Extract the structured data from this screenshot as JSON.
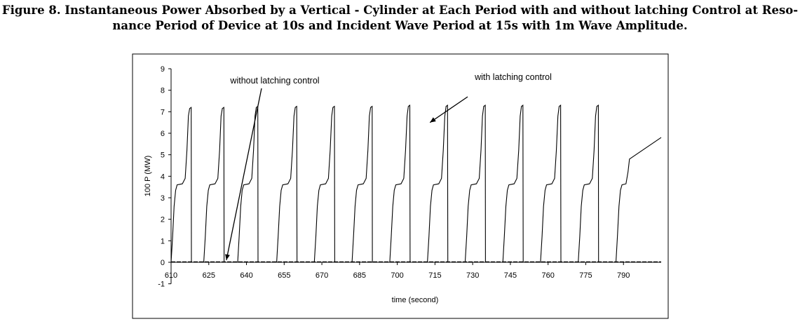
{
  "caption": {
    "line1": "Figure 8. Instantaneous Power Absorbed by a Vertical - Cylinder at Each Period with and without latching Control at Reso-",
    "line2": "nance Period of  Device at 10s and Incident Wave Period at 15s with 1m Wave Amplitude."
  },
  "chart_data": {
    "type": "line",
    "title": "",
    "xlabel": "time (second)",
    "ylabel": "100 P (MW)",
    "xlim": [
      610,
      805
    ],
    "ylim": [
      -1,
      9
    ],
    "xticks": [
      610,
      625,
      640,
      655,
      670,
      685,
      700,
      715,
      730,
      745,
      760,
      775,
      790
    ],
    "xtick_labels": [
      "610",
      "625",
      "640",
      "655",
      "670",
      "685",
      "700",
      "715",
      "730",
      "745",
      "760",
      "775",
      "790"
    ],
    "yticks": [
      -1,
      0,
      1,
      2,
      3,
      4,
      5,
      6,
      7,
      8,
      9
    ],
    "ytick_labels": [
      "-1",
      "0",
      "1",
      "2",
      "3",
      "4",
      "5",
      "6",
      "7",
      "8",
      "9"
    ],
    "grid": false,
    "legend": "none",
    "series": [
      {
        "name": "with latching control",
        "pulse_start_times": [
          610,
          623,
          636.5,
          652,
          667,
          682,
          697,
          712,
          727,
          742,
          757,
          772,
          787
        ],
        "pulse_peaks": [
          7.2,
          7.2,
          7.25,
          7.25,
          7.25,
          7.25,
          7.3,
          7.3,
          7.3,
          7.3,
          7.3,
          7.3
        ],
        "pulse_plateau": 3.6,
        "last_value": 5.8,
        "color": "#000000"
      },
      {
        "name": "without latching control",
        "x": [
          610,
          805
        ],
        "y": [
          0.02,
          0.02
        ],
        "color": "#000000"
      }
    ],
    "annotations": [
      {
        "text": "without latching control",
        "points_to": [
          632,
          0.1
        ]
      },
      {
        "text": "with latching control",
        "points_to": [
          713,
          6.5
        ]
      }
    ]
  }
}
